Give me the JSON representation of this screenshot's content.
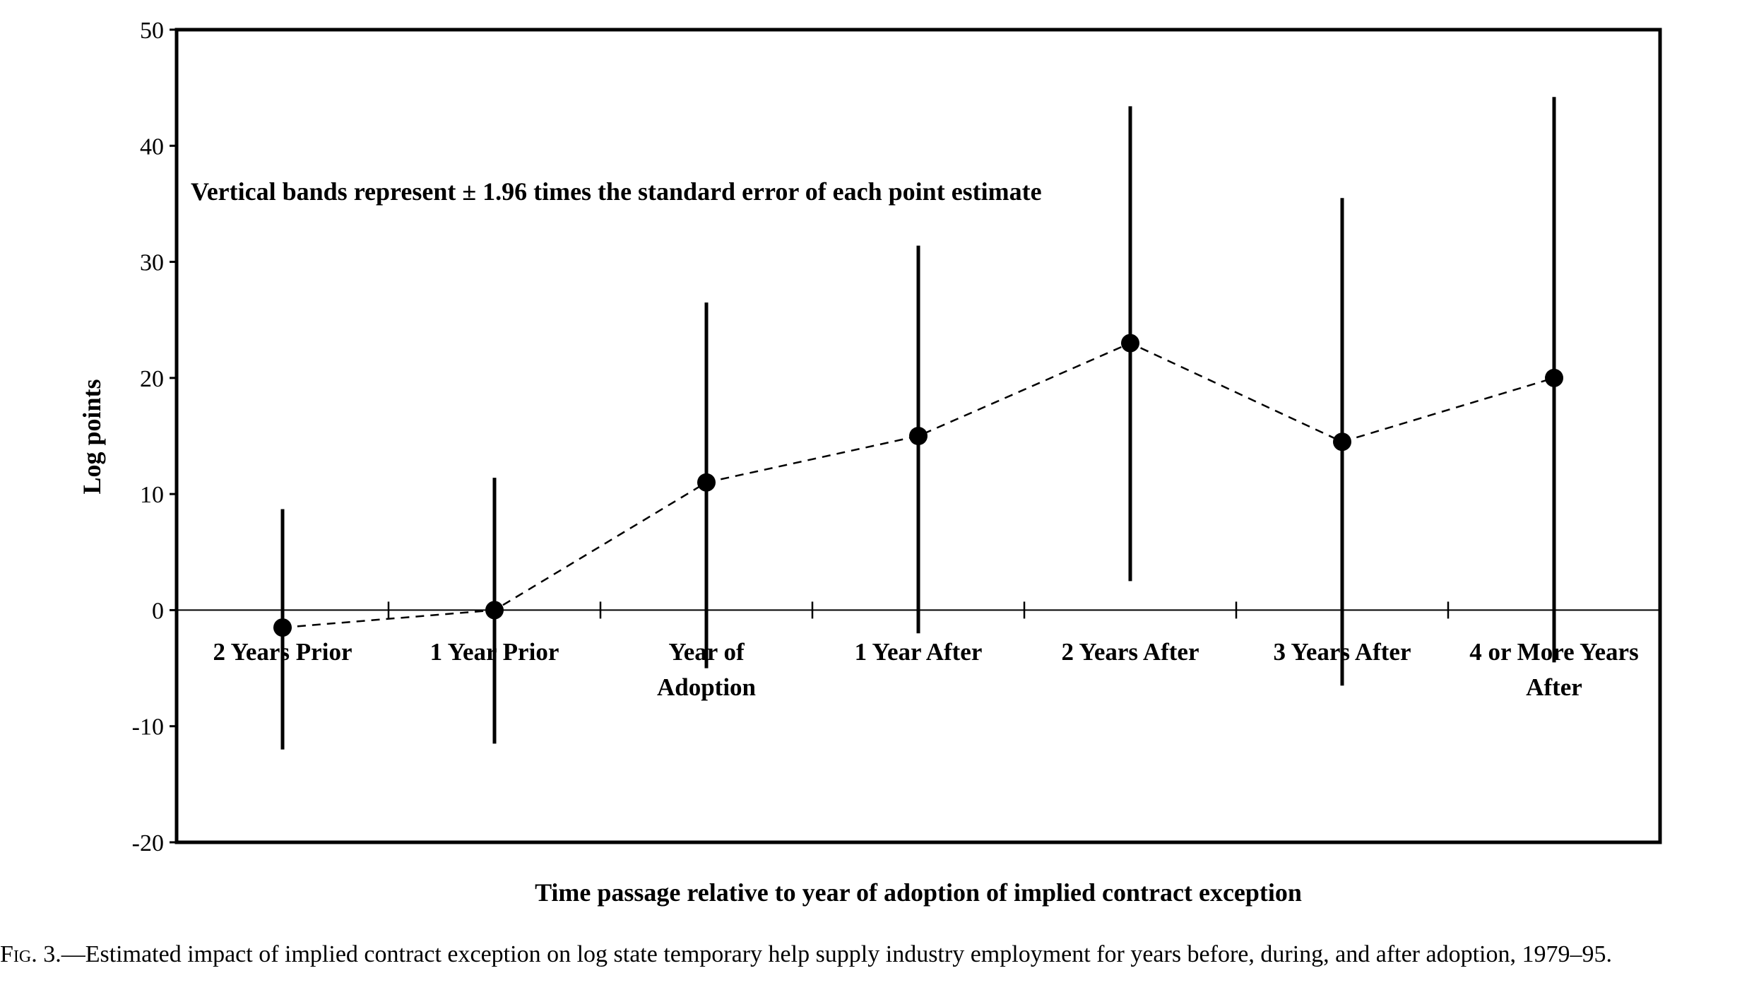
{
  "chart_data": {
    "type": "scatter",
    "title": "",
    "annotation": "Vertical bands represent ± 1.96 times the standard error of each point estimate",
    "xlabel": "Time passage relative to year of adoption of implied contract exception",
    "ylabel": "Log points",
    "ylim": [
      -20,
      50
    ],
    "yticks": [
      -20,
      -10,
      0,
      10,
      20,
      30,
      40,
      50
    ],
    "categories": [
      [
        "2 Years Prior"
      ],
      [
        "1 Year Prior"
      ],
      [
        "Year of",
        "Adoption"
      ],
      [
        "1 Year After"
      ],
      [
        "2 Years After"
      ],
      [
        "3 Years After"
      ],
      [
        "4 or More Years",
        "After"
      ]
    ],
    "series": [
      {
        "values": [
          -1.5,
          0,
          11,
          15,
          23,
          14.5,
          20
        ],
        "lower": [
          -12,
          -11.5,
          -5,
          -2,
          2.5,
          -6.5,
          -4.5
        ],
        "upper": [
          8.7,
          11.4,
          26.5,
          31.4,
          43.4,
          35.5,
          44.2
        ],
        "line_style": "dashed",
        "marker": "filled-circle"
      }
    ],
    "grid": false,
    "legend": "none"
  },
  "caption": {
    "label": "Fig. 3.",
    "text": "—Estimated impact of implied contract exception on log state temporary help supply industry employment for years before, during, and after adoption, 1979–95."
  }
}
